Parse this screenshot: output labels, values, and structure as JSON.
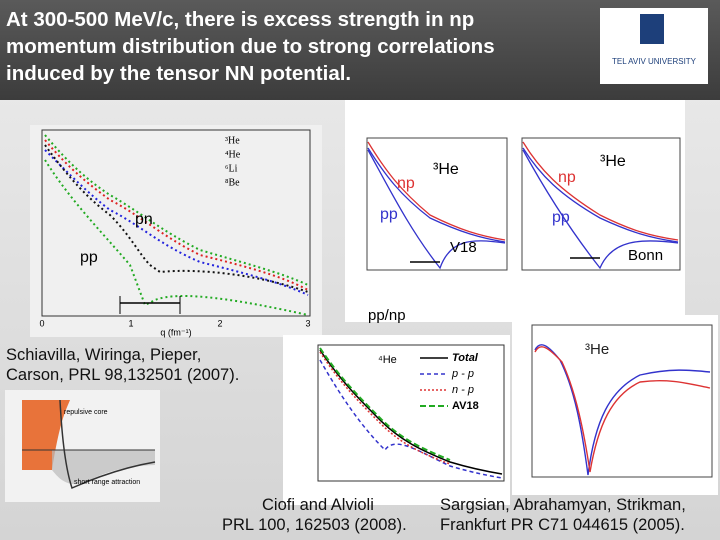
{
  "header": {
    "title_lines": [
      "At 300-500 MeV/c, there is excess strength in np",
      "momentum distribution due to strong correlations",
      "induced by the  tensor NN potential."
    ],
    "logo": "TEL AVIV UNIVERSITY"
  },
  "left_plot": {
    "legend": [
      "³He",
      "⁴He",
      "⁶Li",
      "⁸Be"
    ],
    "pn": "pn",
    "pp": "pp",
    "x_label": "q (fm⁻¹)",
    "x_ticks": [
      "0",
      "1",
      "2",
      "3"
    ]
  },
  "right_top": {
    "v18": {
      "np": "np",
      "pp": "pp",
      "nucleus": "³He",
      "potential": "V18"
    },
    "bonn": {
      "np": "np",
      "pp": "pp",
      "nucleus": "³He",
      "potential": "Bonn"
    },
    "caption": "pp/np"
  },
  "middle_plot": {
    "nucleus": "⁴He",
    "legend": [
      "Total",
      "p - p",
      "n - p",
      "AV18"
    ]
  },
  "right_bottom": {
    "nucleus": "³He"
  },
  "potential": {
    "labels": [
      "repulsive core",
      "short range attraction"
    ]
  },
  "citations": {
    "schiavilla": [
      "Schiavilla, Wiringa, Pieper,",
      "Carson, PRL 98,132501 (2007)."
    ],
    "ciofi": [
      "Ciofi and Alvioli",
      "PRL 100, 162503 (2008)."
    ],
    "sargsian": [
      "Sargsian, Abrahamyan, Strikman,",
      "Frankfurt PR C71 044615 (2005)."
    ]
  }
}
